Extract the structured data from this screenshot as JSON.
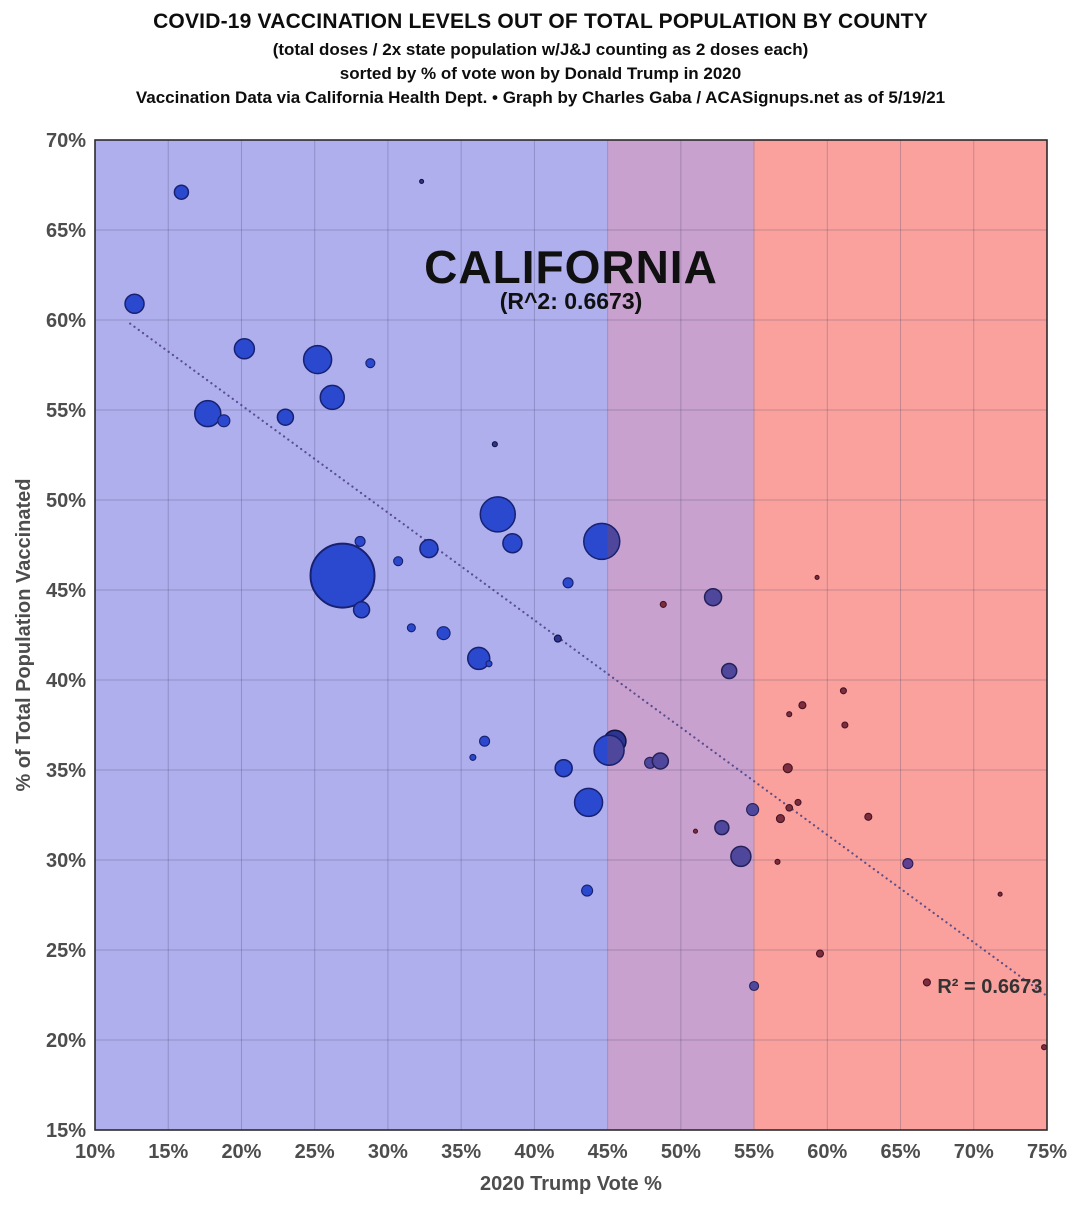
{
  "header": {
    "title": "COVID-19 VACCINATION LEVELS OUT OF TOTAL POPULATION BY COUNTY",
    "subtitle1": "(total doses / 2x state population w/J&J counting as 2 doses each)",
    "subtitle2": "sorted by % of vote won by Donald Trump in 2020",
    "subtitle3": "Vaccination Data via California Health Dept. • Graph by Charles Gaba / ACASignups.net as of 5/19/21"
  },
  "chart_data": {
    "type": "scatter",
    "title": "CALIFORNIA",
    "title_sub": "(R^2: 0.6673)",
    "annotation": "R² = 0.6673",
    "annotation_pos": {
      "x": 71.1,
      "y": 22.6
    },
    "xlabel": "2020 Trump Vote %",
    "ylabel": "% of Total Population Vaccinated",
    "xlim": [
      10,
      75
    ],
    "ylim": [
      15,
      70
    ],
    "x_tick_labels": [
      "10%",
      "15%",
      "20%",
      "25%",
      "30%",
      "35%",
      "40%",
      "45%",
      "50%",
      "55%",
      "60%",
      "65%",
      "70%",
      "75%"
    ],
    "y_tick_labels": [
      "15%",
      "20%",
      "25%",
      "30%",
      "35%",
      "40%",
      "45%",
      "50%",
      "55%",
      "60%",
      "65%",
      "70%"
    ],
    "grid": true,
    "bands": [
      {
        "name": "blue-zone",
        "from": 10,
        "to": 45,
        "color": "#afafee"
      },
      {
        "name": "purple-zone",
        "from": 45,
        "to": 55,
        "color": "#c8a1cf"
      },
      {
        "name": "red-zone",
        "from": 55,
        "to": 75,
        "color": "#fba19d"
      }
    ],
    "trendline": {
      "x1": 12.4,
      "y1": 59.8,
      "x2": 74.9,
      "y2": 22.5,
      "style": "dotted",
      "color": "#4f4486",
      "r_squared": 0.6673
    },
    "colors": {
      "blue": {
        "fill": "#2b49ce",
        "stroke": "#17216f"
      },
      "navy": {
        "fill": "#2e3590",
        "stroke": "#11133f"
      },
      "purpleblue": {
        "fill": "#4e479c",
        "stroke": "#262058"
      },
      "violet": {
        "fill": "#5e4191",
        "stroke": "#2e1a52"
      },
      "red": {
        "fill": "#7c2e3e",
        "stroke": "#471324"
      }
    },
    "points": [
      {
        "x": 26.9,
        "y": 45.8,
        "r": 32,
        "c": "blue"
      },
      {
        "x": 15.9,
        "y": 67.1,
        "r": 7,
        "c": "blue"
      },
      {
        "x": 32.3,
        "y": 67.7,
        "r": 2,
        "c": "navy"
      },
      {
        "x": 12.7,
        "y": 60.9,
        "r": 9.5,
        "c": "blue"
      },
      {
        "x": 20.2,
        "y": 58.4,
        "r": 10,
        "c": "blue"
      },
      {
        "x": 25.2,
        "y": 57.8,
        "r": 14,
        "c": "blue"
      },
      {
        "x": 28.8,
        "y": 57.6,
        "r": 4.5,
        "c": "blue"
      },
      {
        "x": 26.2,
        "y": 55.7,
        "r": 12,
        "c": "blue"
      },
      {
        "x": 17.7,
        "y": 54.8,
        "r": 13,
        "c": "blue"
      },
      {
        "x": 18.8,
        "y": 54.4,
        "r": 6,
        "c": "blue"
      },
      {
        "x": 23.0,
        "y": 54.6,
        "r": 8,
        "c": "blue"
      },
      {
        "x": 37.3,
        "y": 53.1,
        "r": 2.5,
        "c": "navy"
      },
      {
        "x": 37.5,
        "y": 49.2,
        "r": 17.5,
        "c": "blue"
      },
      {
        "x": 38.5,
        "y": 47.6,
        "r": 9.5,
        "c": "blue"
      },
      {
        "x": 44.6,
        "y": 47.7,
        "r": 18,
        "c": "blue",
        "split_at": 45
      },
      {
        "x": 28.1,
        "y": 47.7,
        "r": 5,
        "c": "blue"
      },
      {
        "x": 30.7,
        "y": 46.6,
        "r": 4.5,
        "c": "blue"
      },
      {
        "x": 32.8,
        "y": 47.3,
        "r": 9,
        "c": "blue"
      },
      {
        "x": 42.3,
        "y": 45.4,
        "r": 5,
        "c": "blue"
      },
      {
        "x": 28.2,
        "y": 43.9,
        "r": 8,
        "c": "blue"
      },
      {
        "x": 31.6,
        "y": 42.9,
        "r": 4,
        "c": "blue"
      },
      {
        "x": 33.8,
        "y": 42.6,
        "r": 6.5,
        "c": "blue"
      },
      {
        "x": 36.2,
        "y": 41.2,
        "r": 11,
        "c": "blue"
      },
      {
        "x": 36.9,
        "y": 40.9,
        "r": 3,
        "c": "blue"
      },
      {
        "x": 41.6,
        "y": 42.3,
        "r": 3.5,
        "c": "navy"
      },
      {
        "x": 48.8,
        "y": 44.2,
        "r": 3,
        "c": "red"
      },
      {
        "x": 52.2,
        "y": 44.6,
        "r": 8.5,
        "c": "purpleblue"
      },
      {
        "x": 53.3,
        "y": 40.5,
        "r": 7.5,
        "c": "purpleblue"
      },
      {
        "x": 59.3,
        "y": 45.7,
        "r": 2,
        "c": "red"
      },
      {
        "x": 57.4,
        "y": 38.1,
        "r": 2.5,
        "c": "red"
      },
      {
        "x": 58.3,
        "y": 38.6,
        "r": 3.5,
        "c": "red"
      },
      {
        "x": 61.1,
        "y": 39.4,
        "r": 3,
        "c": "red"
      },
      {
        "x": 61.2,
        "y": 37.5,
        "r": 3,
        "c": "red"
      },
      {
        "x": 36.6,
        "y": 36.6,
        "r": 5,
        "c": "blue"
      },
      {
        "x": 35.8,
        "y": 35.7,
        "r": 3,
        "c": "blue"
      },
      {
        "x": 45.5,
        "y": 36.6,
        "r": 11,
        "c": "navy"
      },
      {
        "x": 45.1,
        "y": 36.1,
        "r": 15,
        "c": "blue",
        "split_at": 45
      },
      {
        "x": 47.9,
        "y": 35.4,
        "r": 5.5,
        "c": "purpleblue"
      },
      {
        "x": 48.6,
        "y": 35.5,
        "r": 8,
        "c": "purpleblue"
      },
      {
        "x": 42.0,
        "y": 35.1,
        "r": 8.5,
        "c": "blue"
      },
      {
        "x": 57.3,
        "y": 35.1,
        "r": 4.5,
        "c": "red"
      },
      {
        "x": 43.7,
        "y": 33.2,
        "r": 14,
        "c": "blue"
      },
      {
        "x": 54.9,
        "y": 32.8,
        "r": 6,
        "c": "purpleblue"
      },
      {
        "x": 52.8,
        "y": 31.8,
        "r": 7,
        "c": "purpleblue"
      },
      {
        "x": 51.0,
        "y": 31.6,
        "r": 2,
        "c": "red"
      },
      {
        "x": 58.0,
        "y": 33.2,
        "r": 3,
        "c": "red"
      },
      {
        "x": 57.4,
        "y": 32.9,
        "r": 3.3,
        "c": "red"
      },
      {
        "x": 56.8,
        "y": 32.3,
        "r": 4,
        "c": "red"
      },
      {
        "x": 62.8,
        "y": 32.4,
        "r": 3.5,
        "c": "red"
      },
      {
        "x": 65.5,
        "y": 29.8,
        "r": 5,
        "c": "violet"
      },
      {
        "x": 54.1,
        "y": 30.2,
        "r": 10,
        "c": "purpleblue"
      },
      {
        "x": 56.6,
        "y": 29.9,
        "r": 2.5,
        "c": "red"
      },
      {
        "x": 43.6,
        "y": 28.3,
        "r": 5.5,
        "c": "blue"
      },
      {
        "x": 71.8,
        "y": 28.1,
        "r": 2,
        "c": "red"
      },
      {
        "x": 59.5,
        "y": 24.8,
        "r": 3.5,
        "c": "red"
      },
      {
        "x": 55.0,
        "y": 23.0,
        "r": 4.5,
        "c": "purpleblue"
      },
      {
        "x": 66.8,
        "y": 23.2,
        "r": 3.5,
        "c": "red"
      },
      {
        "x": 74.8,
        "y": 19.6,
        "r": 2.5,
        "c": "red"
      }
    ]
  }
}
